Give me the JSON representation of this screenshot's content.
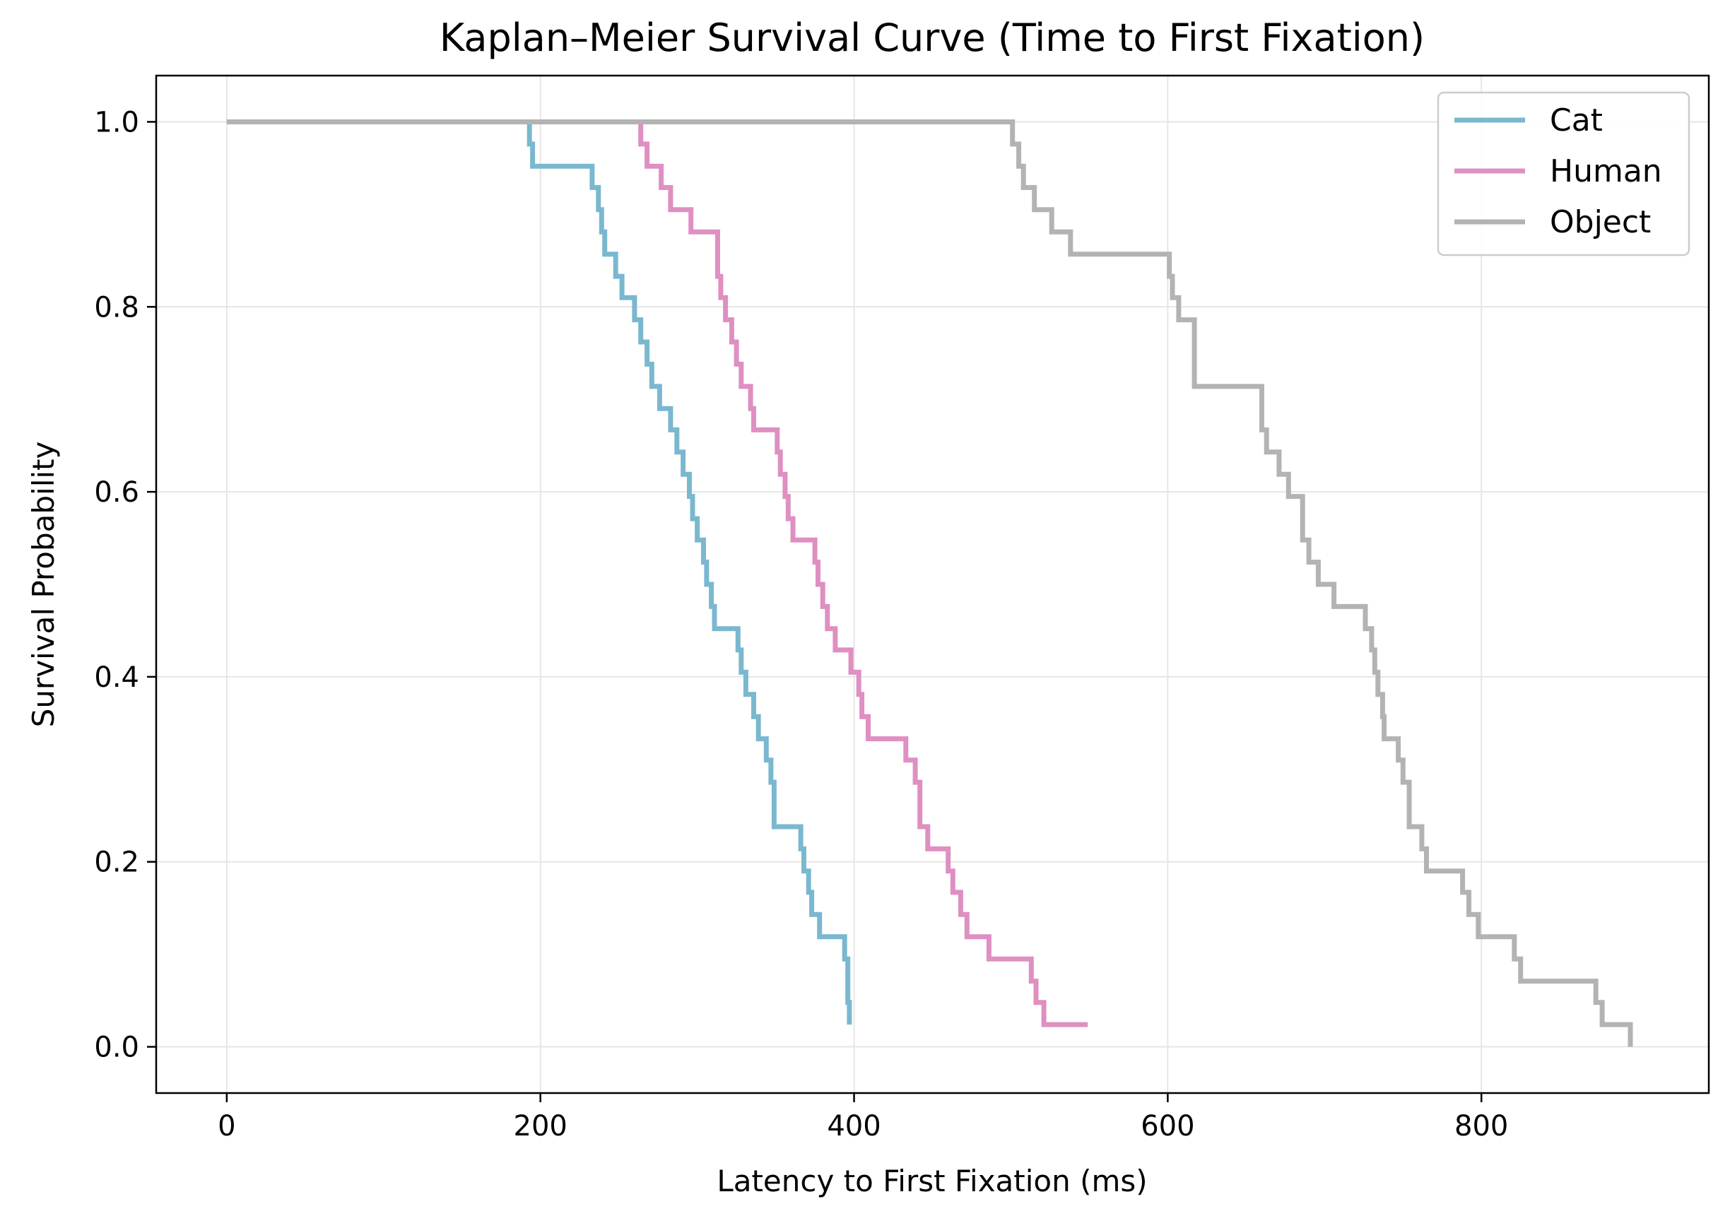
{
  "chart_data": {
    "type": "line",
    "subtype": "step",
    "title": "Kaplan–Meier Survival Curve (Time to First Fixation)",
    "xlabel": "Latency to First Fixation (ms)",
    "ylabel": "Survival Probability",
    "xlim": [
      -45,
      945
    ],
    "ylim": [
      -0.05,
      1.05
    ],
    "xticks": [
      0,
      200,
      400,
      600,
      800
    ],
    "xtick_labels": [
      "0",
      "200",
      "400",
      "600",
      "800"
    ],
    "yticks": [
      0.0,
      0.2,
      0.4,
      0.6,
      0.8,
      1.0
    ],
    "ytick_labels": [
      "0.0",
      "0.2",
      "0.4",
      "0.6",
      "0.8",
      "1.0"
    ],
    "grid": true,
    "legend_position": "top-right",
    "series": [
      {
        "name": "Cat",
        "color": "#7ab8cf",
        "x": [
          0,
          193,
          195,
          207,
          233,
          237,
          239,
          241,
          248,
          252,
          260,
          264,
          268,
          271,
          276,
          283,
          287,
          291,
          295,
          297,
          300,
          304,
          306,
          309,
          311,
          326,
          328,
          331,
          336,
          339,
          344,
          347,
          349,
          366,
          368,
          371,
          373,
          378,
          394,
          396,
          397
        ],
        "y": [
          1.0,
          0.976,
          0.952,
          0.952,
          0.929,
          0.905,
          0.881,
          0.857,
          0.833,
          0.81,
          0.786,
          0.762,
          0.738,
          0.714,
          0.69,
          0.667,
          0.643,
          0.619,
          0.595,
          0.571,
          0.548,
          0.524,
          0.5,
          0.476,
          0.452,
          0.429,
          0.405,
          0.381,
          0.357,
          0.333,
          0.31,
          0.286,
          0.238,
          0.214,
          0.19,
          0.167,
          0.143,
          0.119,
          0.095,
          0.048,
          0.024
        ]
      },
      {
        "name": "Human",
        "color": "#df8fc2",
        "x": [
          0,
          264,
          268,
          277,
          283,
          296,
          313,
          315,
          318,
          322,
          325,
          328,
          334,
          336,
          351,
          353,
          356,
          358,
          361,
          375,
          377,
          380,
          383,
          388,
          398,
          403,
          405,
          409,
          433,
          439,
          442,
          447,
          460,
          463,
          468,
          472,
          486,
          513,
          516,
          521,
          528,
          531,
          536,
          539,
          544,
          547,
          549
        ],
        "y": [
          1.0,
          0.976,
          0.952,
          0.929,
          0.905,
          0.881,
          0.833,
          0.81,
          0.786,
          0.762,
          0.738,
          0.714,
          0.69,
          0.667,
          0.643,
          0.619,
          0.595,
          0.571,
          0.548,
          0.524,
          0.5,
          0.476,
          0.452,
          0.429,
          0.405,
          0.381,
          0.357,
          0.333,
          0.31,
          0.286,
          0.238,
          0.214,
          0.19,
          0.167,
          0.143,
          0.119,
          0.095,
          0.071,
          0.048,
          0.024,
          0.024,
          0.024,
          0.024,
          0.024,
          0.024,
          0.024,
          0.024
        ]
      },
      {
        "name": "Object",
        "color": "#b3b3b3",
        "x": [
          0,
          501,
          505,
          508,
          511,
          515,
          526,
          538,
          548,
          601,
          603,
          607,
          617,
          642,
          660,
          663,
          671,
          677,
          686,
          690,
          696,
          706,
          726,
          730,
          732,
          734,
          737,
          738,
          747,
          750,
          754,
          754,
          762,
          765,
          788,
          792,
          798,
          821,
          825,
          873,
          877,
          883,
          895
        ],
        "y": [
          1.0,
          0.976,
          0.952,
          0.929,
          0.929,
          0.905,
          0.881,
          0.857,
          0.857,
          0.833,
          0.81,
          0.786,
          0.714,
          0.714,
          0.667,
          0.643,
          0.619,
          0.595,
          0.548,
          0.524,
          0.5,
          0.476,
          0.452,
          0.429,
          0.405,
          0.381,
          0.357,
          0.333,
          0.31,
          0.286,
          0.286,
          0.238,
          0.214,
          0.19,
          0.167,
          0.143,
          0.119,
          0.095,
          0.071,
          0.048,
          0.024,
          0.024,
          0.0
        ]
      }
    ]
  }
}
